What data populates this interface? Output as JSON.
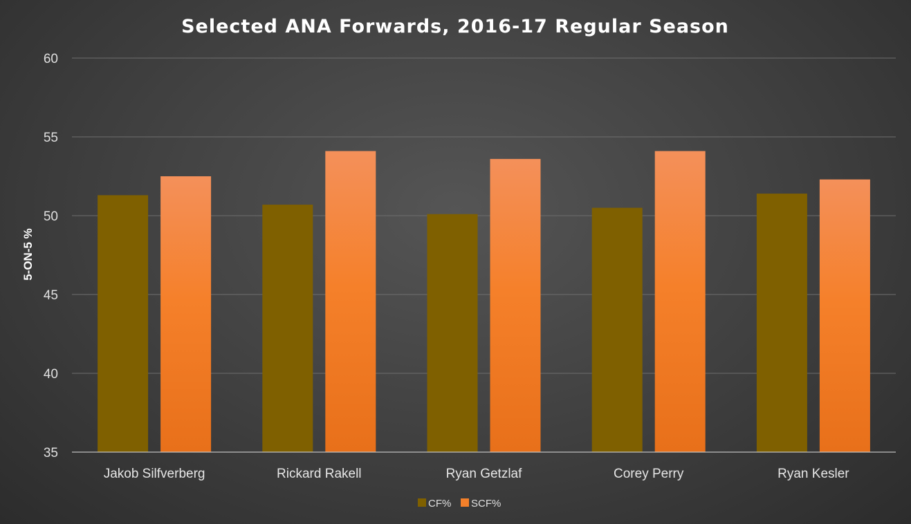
{
  "chart_data": {
    "type": "bar",
    "title": "Selected ANA Forwards, 2016-17 Regular Season",
    "xlabel": "",
    "ylabel": "5-ON-5 %",
    "ylim": [
      35,
      60
    ],
    "yticks": [
      35,
      40,
      45,
      50,
      55,
      60
    ],
    "grid": true,
    "legend_position": "bottom",
    "categories": [
      "Jakob Silfverberg",
      "Rickard Rakell",
      "Ryan Getzlaf",
      "Corey Perry",
      "Ryan Kesler"
    ],
    "series": [
      {
        "name": "CF%",
        "values": [
          51.3,
          50.7,
          50.1,
          50.5,
          51.4
        ],
        "color": "#7f6000"
      },
      {
        "name": "SCF%",
        "values": [
          52.5,
          54.1,
          53.6,
          54.1,
          52.3
        ],
        "color": "#f4802a"
      }
    ]
  }
}
